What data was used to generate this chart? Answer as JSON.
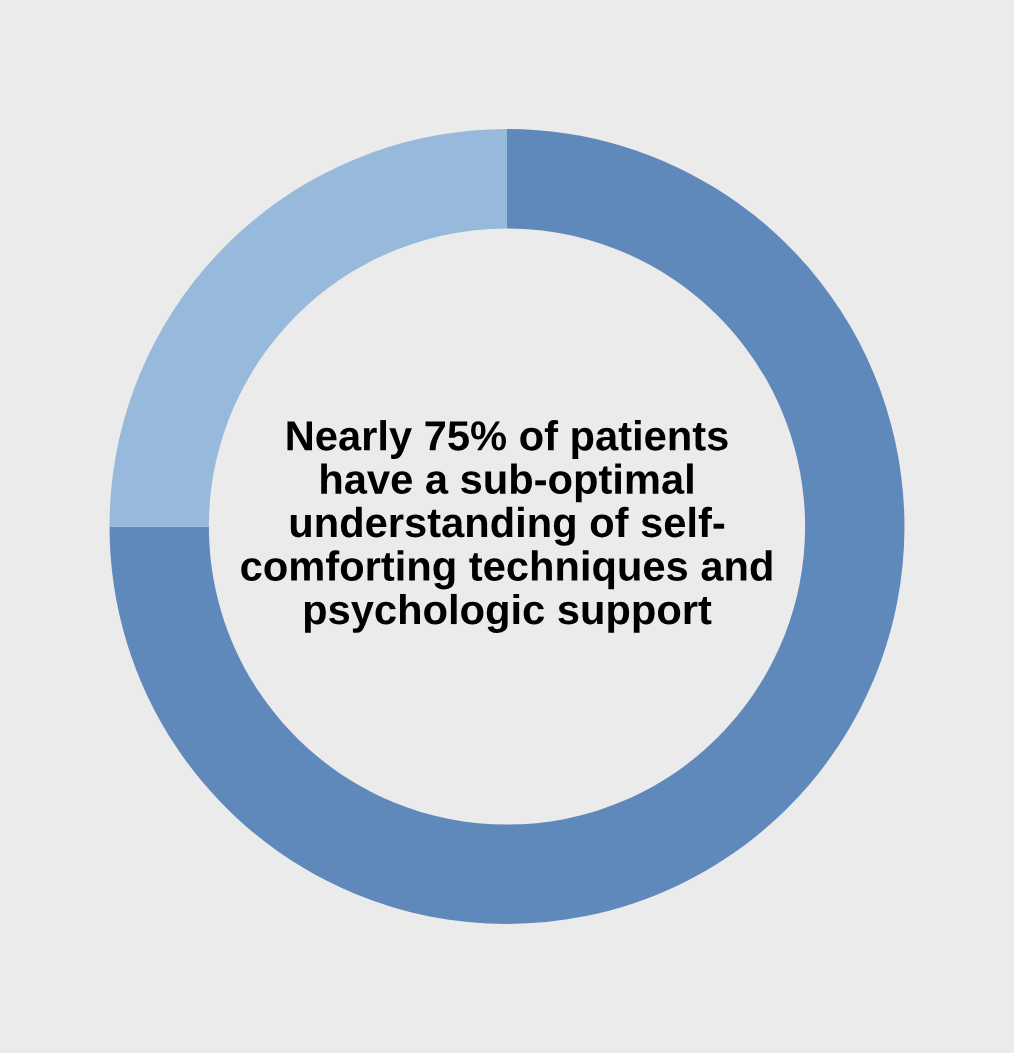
{
  "chart_data": {
    "type": "donut",
    "categories": [
      null,
      null
    ],
    "values": [
      75,
      25
    ],
    "colors": [
      "#6089bb",
      "#97b9db"
    ],
    "annotations": [
      "Nearly 75% of patients\nhave a sub-optimal\nunderstanding of self-\ncomforting techniques and\npsychologic support"
    ]
  }
}
